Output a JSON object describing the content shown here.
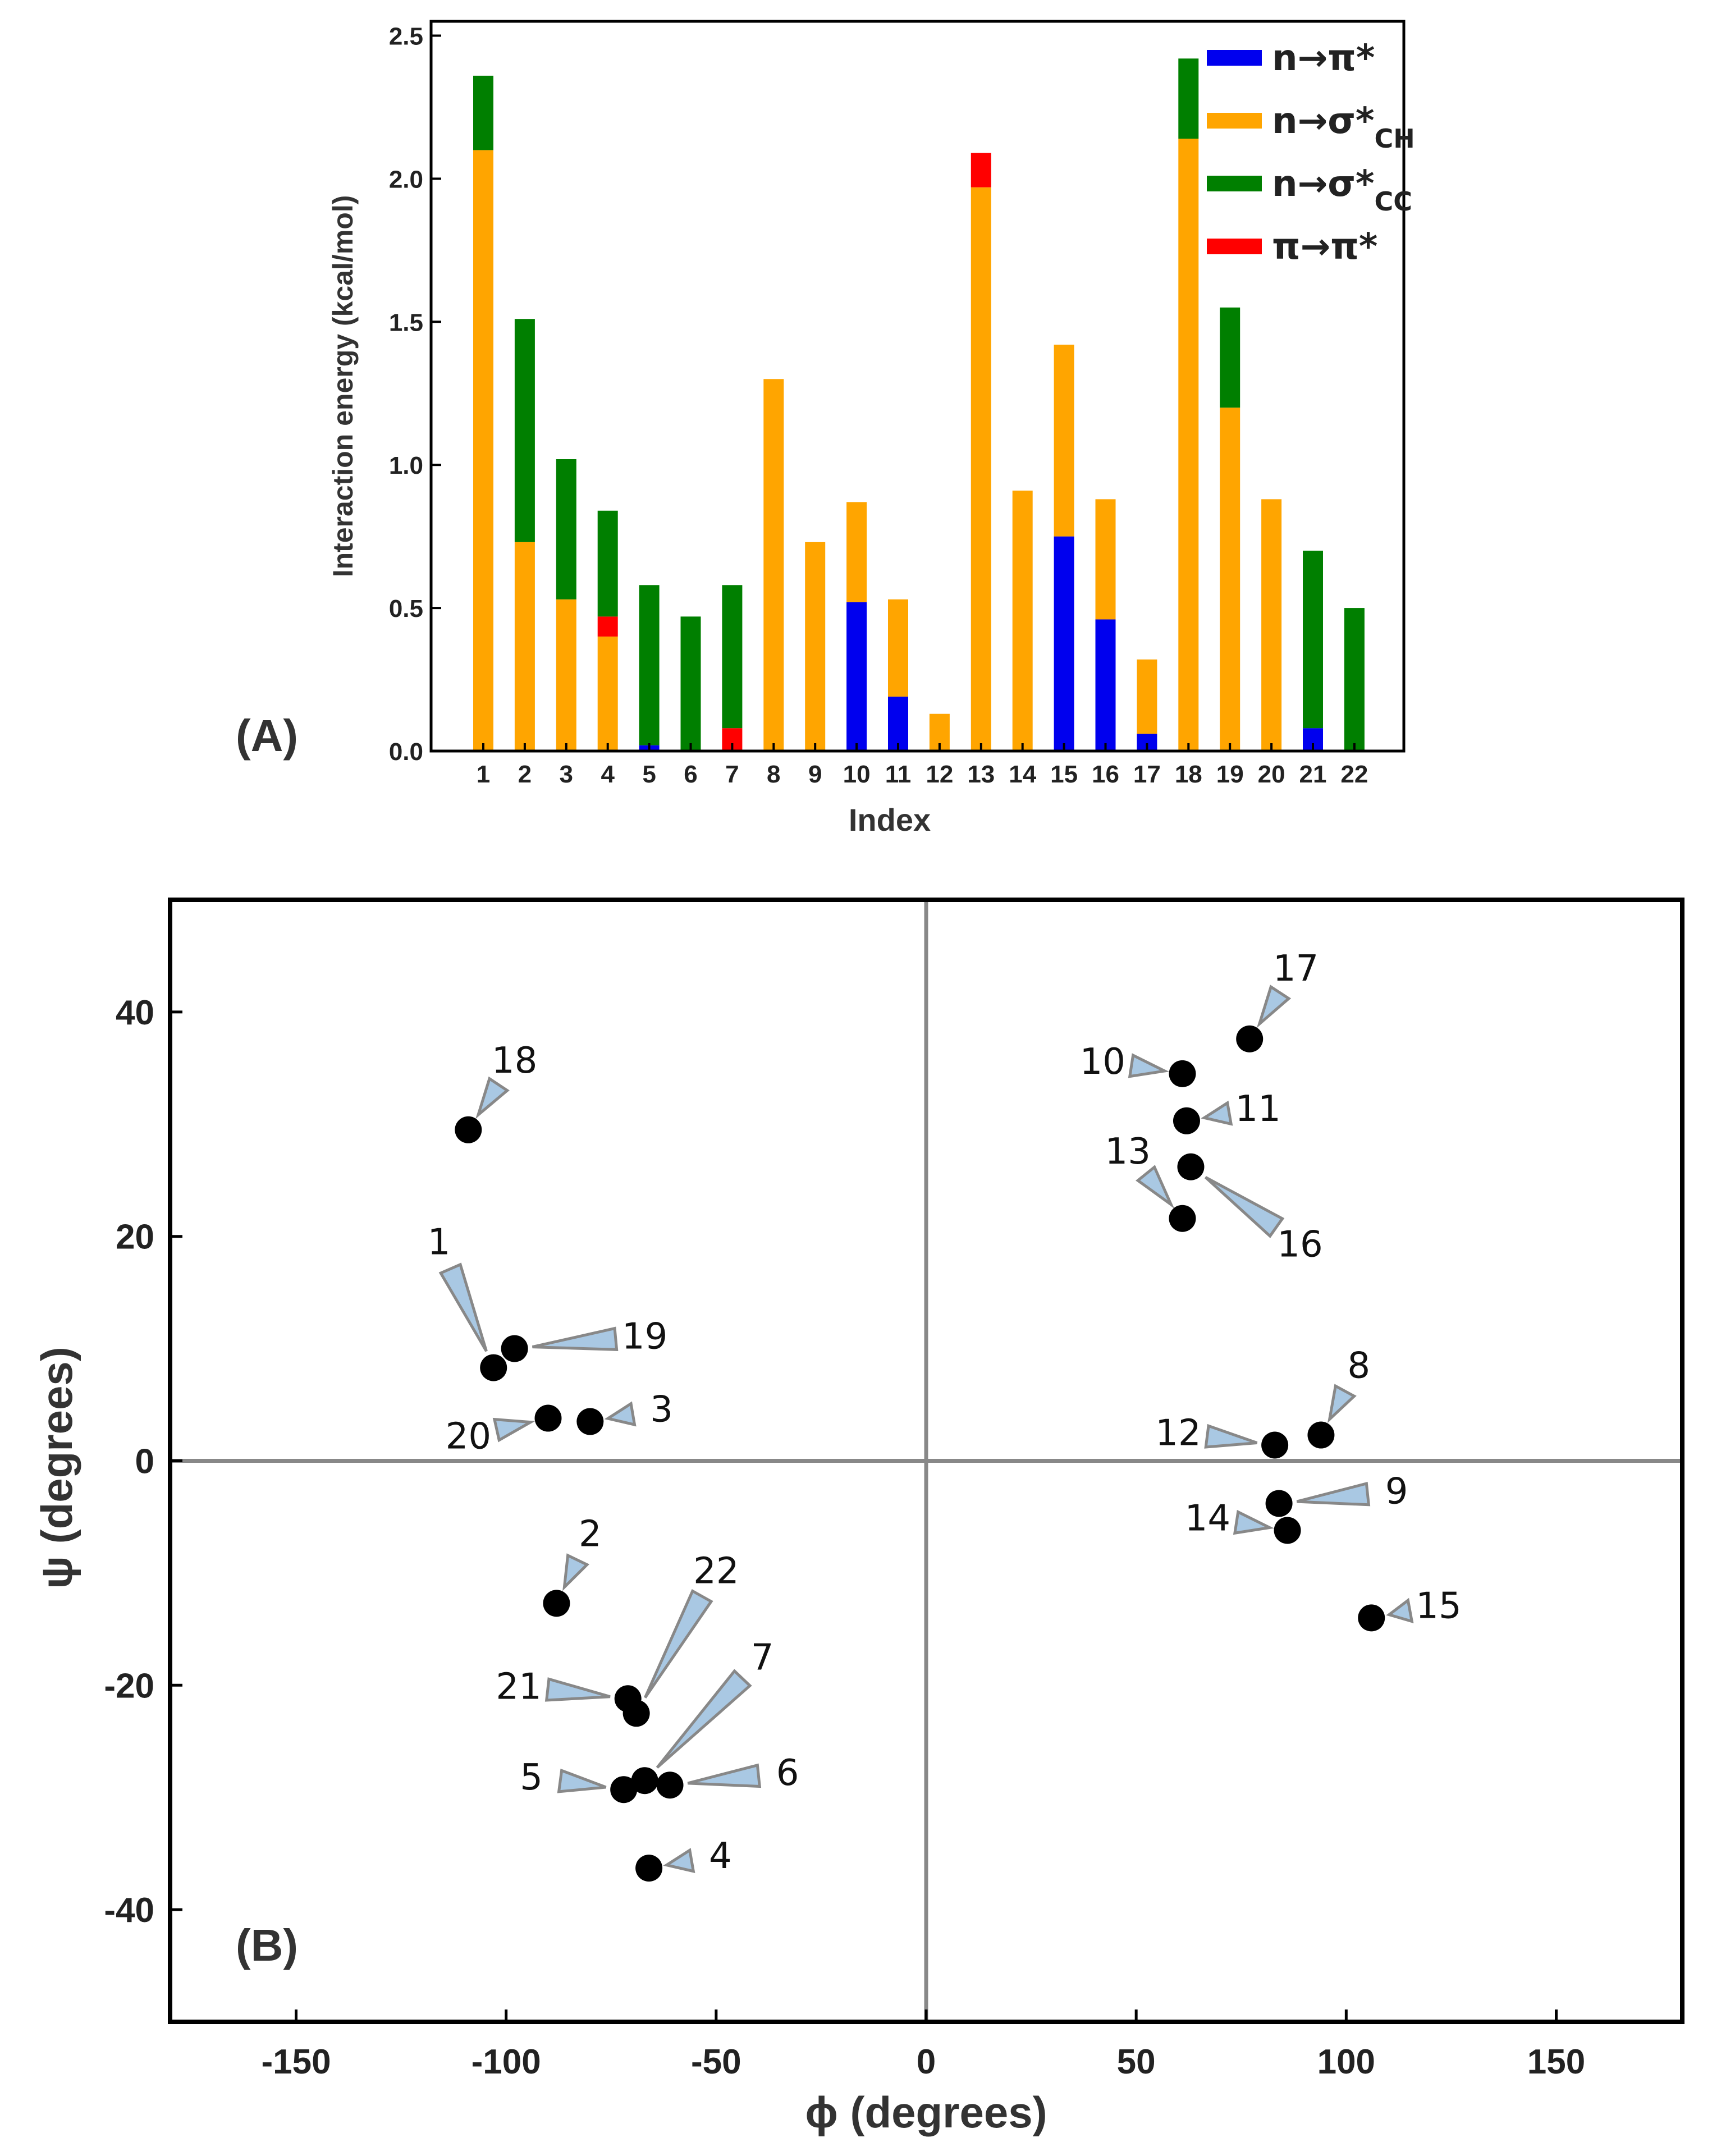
{
  "chart_data": [
    {
      "panel_label": "(A)",
      "type": "bar",
      "stacked": true,
      "xlabel": "Index",
      "ylabel": "Interaction energy (kcal/mol)",
      "ylim": [
        0,
        2.55
      ],
      "yticks": [
        "0.0",
        "0.5",
        "1.0",
        "1.5",
        "2.0",
        "2.5"
      ],
      "legend_position": "top-right",
      "legend": [
        {
          "key": "npi",
          "main": "n→π*",
          "sub": ""
        },
        {
          "key": "nsch",
          "main": "n→σ*",
          "sub": "CH"
        },
        {
          "key": "nscc",
          "main": "n→σ*",
          "sub": "CC"
        },
        {
          "key": "pipi",
          "main": "π→π*",
          "sub": ""
        }
      ],
      "colors": {
        "npi": "#0000ee",
        "nsch": "#ffa500",
        "nscc": "#007f00",
        "pipi": "#ff0000"
      },
      "categories": [
        "1",
        "2",
        "3",
        "4",
        "5",
        "6",
        "7",
        "8",
        "9",
        "10",
        "11",
        "12",
        "13",
        "14",
        "15",
        "16",
        "17",
        "18",
        "19",
        "20",
        "21",
        "22"
      ],
      "series": [
        {
          "key": "npi",
          "name": "n→π*",
          "values": [
            0,
            0,
            0,
            0,
            0.02,
            0,
            0,
            0,
            0,
            0.52,
            0.19,
            0,
            0,
            0,
            0.75,
            0.46,
            0.06,
            0,
            0,
            0,
            0.08,
            0
          ]
        },
        {
          "key": "nsch",
          "name": "n→σ*CH",
          "values": [
            2.1,
            0.73,
            0.53,
            0.4,
            0,
            0,
            0,
            1.3,
            0.73,
            0.35,
            0.34,
            0.13,
            1.97,
            0.91,
            0.67,
            0.42,
            0.26,
            2.14,
            1.2,
            0.88,
            0,
            0
          ]
        },
        {
          "key": "pipi",
          "name": "π→π*",
          "values": [
            0,
            0,
            0,
            0.07,
            0,
            0,
            0.08,
            0,
            0,
            0,
            0,
            0,
            0.12,
            0,
            0,
            0,
            0,
            0,
            0,
            0,
            0,
            0
          ]
        },
        {
          "key": "nscc",
          "name": "n→σ*CC",
          "values": [
            0.26,
            0.78,
            0.49,
            0.37,
            0.56,
            0.47,
            0.5,
            0,
            0,
            0,
            0,
            0,
            0,
            0,
            0,
            0,
            0,
            0.28,
            0.35,
            0,
            0.62,
            0.5
          ]
        }
      ]
    },
    {
      "panel_label": "(B)",
      "type": "scatter",
      "xlabel": "ϕ (degrees)",
      "ylabel": "ψ (degrees)",
      "xlim": [
        -180,
        180
      ],
      "ylim": [
        -50,
        50
      ],
      "xticks": [
        -150,
        -100,
        -50,
        0,
        50,
        100,
        150
      ],
      "yticks": [
        -40,
        -20,
        0,
        20,
        40
      ],
      "points": [
        {
          "label": "1",
          "phi": -103,
          "psi": 8.3,
          "lphi": -116,
          "lpsi": 19.5
        },
        {
          "label": "2",
          "phi": -88,
          "psi": -12.7,
          "lphi": -80,
          "lpsi": -6.5
        },
        {
          "label": "3",
          "phi": -80,
          "psi": 3.5,
          "lphi": -63,
          "lpsi": 4.6
        },
        {
          "label": "4",
          "phi": -66,
          "psi": -36.3,
          "lphi": -49,
          "lpsi": -35.2
        },
        {
          "label": "5",
          "phi": -72,
          "psi": -29.3,
          "lphi": -94,
          "lpsi": -28.2
        },
        {
          "label": "6",
          "phi": -61,
          "psi": -28.9,
          "lphi": -33,
          "lpsi": -27.8
        },
        {
          "label": "7",
          "phi": -67,
          "psi": -28.5,
          "lphi": -39,
          "lpsi": -17.5
        },
        {
          "label": "8",
          "phi": 94,
          "psi": 2.3,
          "lphi": 103,
          "lpsi": 8.5
        },
        {
          "label": "9",
          "phi": 84,
          "psi": -3.8,
          "lphi": 112,
          "lpsi": -2.7
        },
        {
          "label": "10",
          "phi": 61,
          "psi": 34.5,
          "lphi": 42,
          "lpsi": 35.6
        },
        {
          "label": "11",
          "phi": 62,
          "psi": 30.3,
          "lphi": 79,
          "lpsi": 31.4
        },
        {
          "label": "12",
          "phi": 83,
          "psi": 1.4,
          "lphi": 60,
          "lpsi": 2.5
        },
        {
          "label": "13",
          "phi": 61,
          "psi": 21.6,
          "lphi": 48,
          "lpsi": 27.6
        },
        {
          "label": "14",
          "phi": 86,
          "psi": -6.2,
          "lphi": 67,
          "lpsi": -5.1
        },
        {
          "label": "15",
          "phi": 106,
          "psi": -14.0,
          "lphi": 122,
          "lpsi": -12.9
        },
        {
          "label": "16",
          "phi": 63,
          "psi": 26.2,
          "lphi": 89,
          "lpsi": 19.3
        },
        {
          "label": "17",
          "phi": 77,
          "psi": 37.6,
          "lphi": 88,
          "lpsi": 43.9
        },
        {
          "label": "18",
          "phi": -109,
          "psi": 29.5,
          "lphi": -98,
          "lpsi": 35.7
        },
        {
          "label": "19",
          "phi": -98,
          "psi": 10.0,
          "lphi": -67,
          "lpsi": 11.1
        },
        {
          "label": "20",
          "phi": -90,
          "psi": 3.8,
          "lphi": -109,
          "lpsi": 2.2
        },
        {
          "label": "21",
          "phi": -71,
          "psi": -21.2,
          "lphi": -97,
          "lpsi": -20.1
        },
        {
          "label": "22",
          "phi": -69,
          "psi": -22.5,
          "lphi": -50,
          "lpsi": -9.8
        }
      ]
    }
  ]
}
